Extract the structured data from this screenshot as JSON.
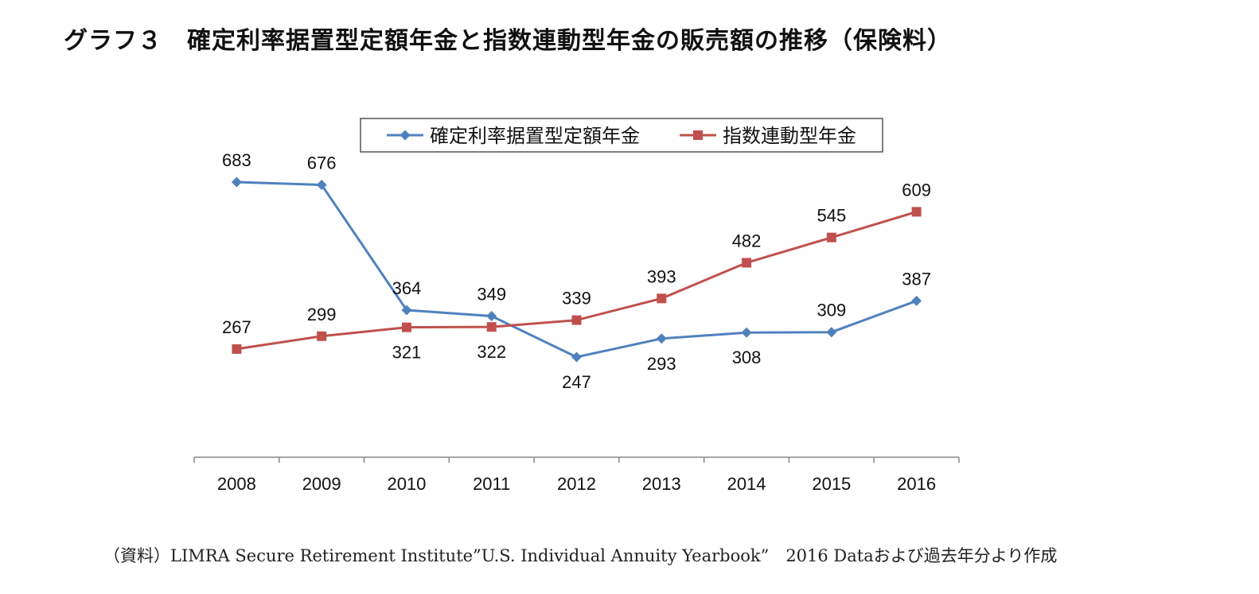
{
  "title": "グラフ３　確定利率据置型定額年金と指数連動型年金の販売額の推移（保険料）",
  "source_note": "（資料）LIMRA Secure Retirement Institute”U.S. Individual Annuity Yearbook”　2016 Dataおよび過去年分より作成",
  "chart_data": {
    "type": "line",
    "categories": [
      "2008",
      "2009",
      "2010",
      "2011",
      "2012",
      "2013",
      "2014",
      "2015",
      "2016"
    ],
    "series": [
      {
        "name": "確定利率据置型定額年金",
        "values": [
          683,
          676,
          364,
          349,
          247,
          293,
          308,
          309,
          387
        ],
        "color": "#4F81BD",
        "marker": "diamond",
        "label_position": [
          "above",
          "above",
          "above",
          "above",
          "below",
          "below",
          "below",
          "above",
          "above"
        ]
      },
      {
        "name": "指数連動型年金",
        "values": [
          267,
          299,
          321,
          322,
          339,
          393,
          482,
          545,
          609
        ],
        "color": "#C0504D",
        "marker": "square",
        "label_position": [
          "above",
          "above",
          "below",
          "below",
          "above",
          "above",
          "above",
          "above",
          "above"
        ]
      }
    ],
    "ylim": [
      0,
      800
    ],
    "y_axis_visible": false,
    "grid": false,
    "legend_position": "top"
  }
}
